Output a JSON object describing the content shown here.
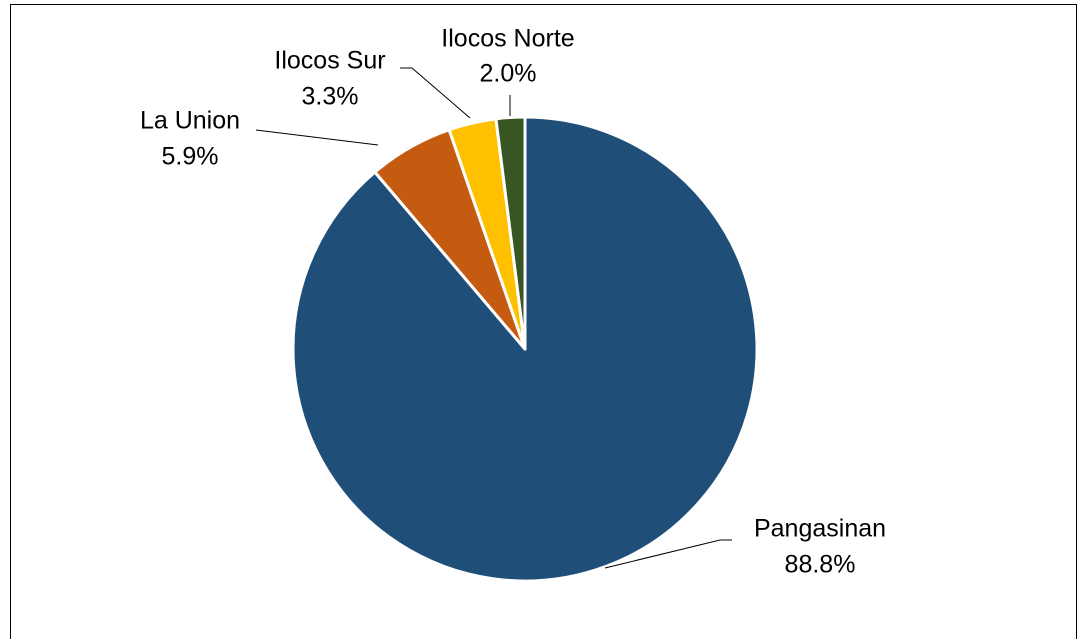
{
  "chart_data": {
    "type": "pie",
    "categories": [
      "Pangasinan",
      "La Union",
      "Ilocos Sur",
      "Ilocos Norte"
    ],
    "values": [
      88.8,
      5.9,
      3.3,
      2.0
    ],
    "value_labels": [
      "88.8%",
      "5.9%",
      "3.3%",
      "2.0%"
    ],
    "colors": [
      "#1f4e79",
      "#c55a11",
      "#ffc000",
      "#375623"
    ]
  }
}
